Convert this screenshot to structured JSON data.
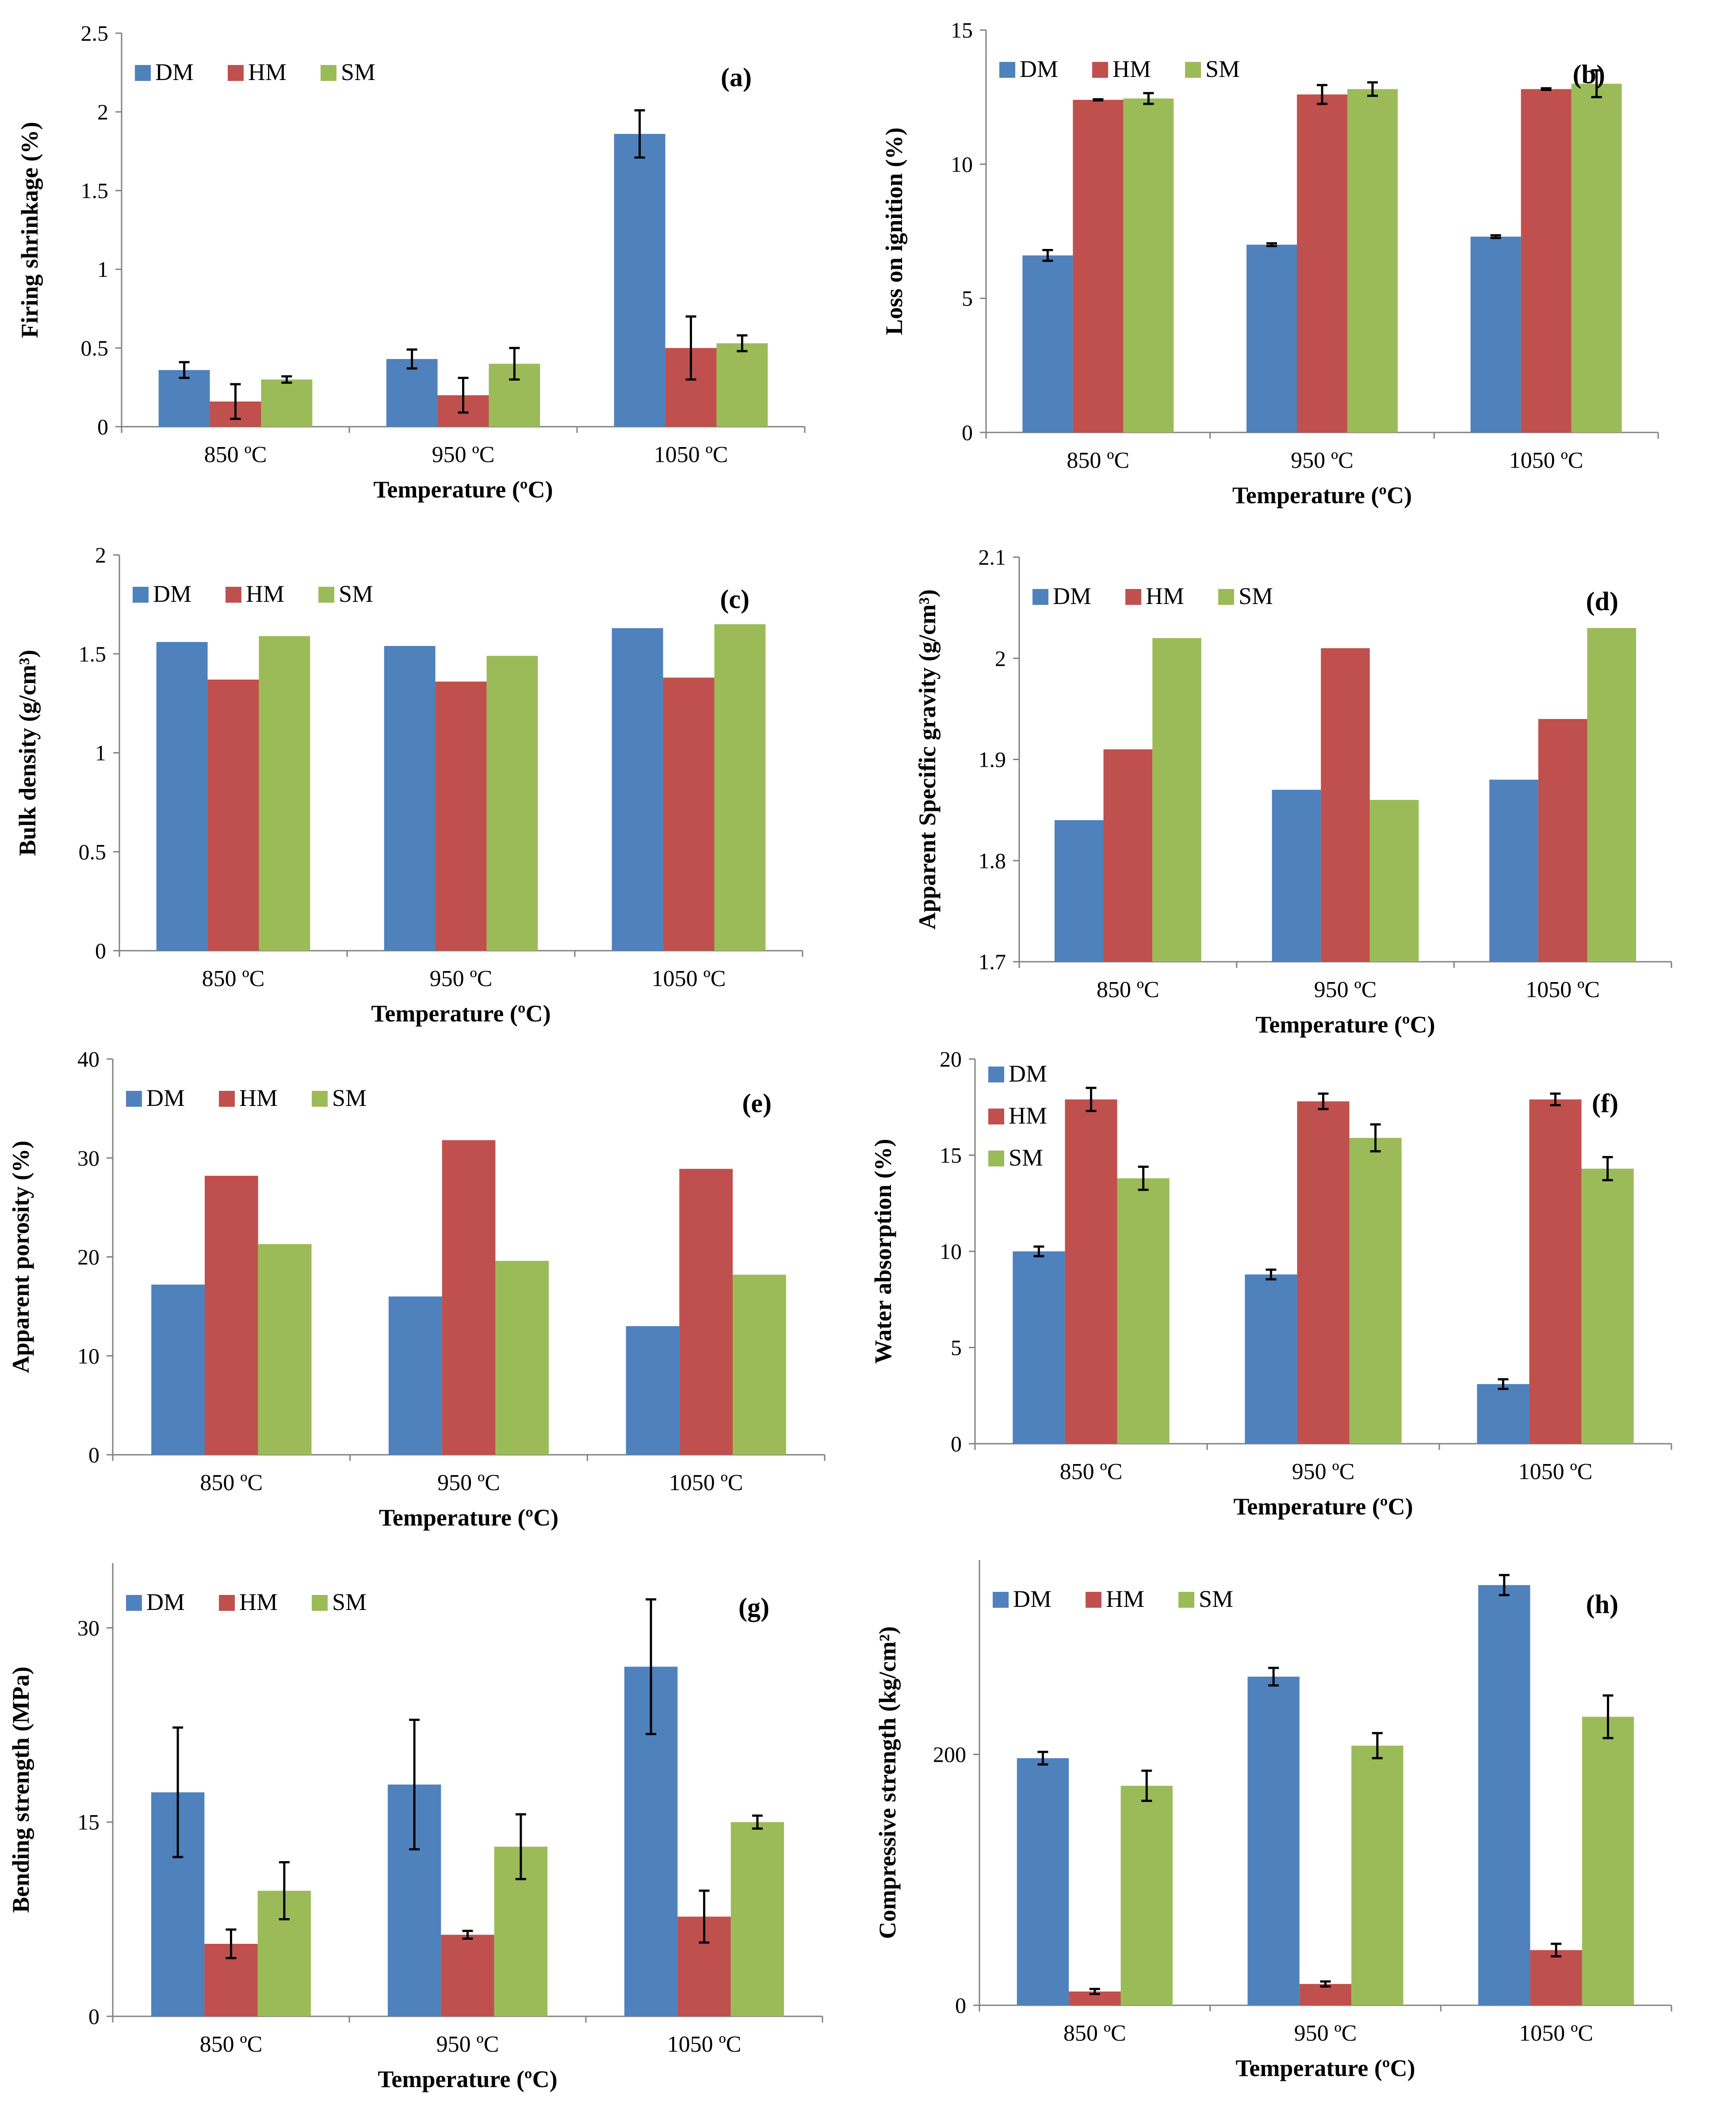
{
  "colors": {
    "DM": "#4f81bd",
    "HM": "#c0504d",
    "SM": "#9bbb59"
  },
  "chart_data": [
    {
      "id": "a",
      "type": "bar",
      "title": "(a)",
      "xlabel": "Temperature (ºC)",
      "ylabel": "Firing shrinkage (%)",
      "categories": [
        "850 ºC",
        "950 ºC",
        "1050 ºC"
      ],
      "ylim": [
        0,
        2.5
      ],
      "yticks": [
        0,
        0.5,
        1,
        1.5,
        2,
        2.5
      ],
      "ytick_labels": [
        "0",
        "0.5",
        "1",
        "1.5",
        "2",
        "2.5"
      ],
      "series": [
        {
          "name": "DM",
          "values": [
            0.36,
            0.43,
            1.86
          ],
          "errors": [
            0.05,
            0.06,
            0.15
          ]
        },
        {
          "name": "HM",
          "values": [
            0.16,
            0.2,
            0.5
          ],
          "errors": [
            0.11,
            0.11,
            0.2
          ]
        },
        {
          "name": "SM",
          "values": [
            0.3,
            0.4,
            0.53
          ],
          "errors": [
            0.02,
            0.1,
            0.05
          ]
        }
      ],
      "legend": "top-left-row"
    },
    {
      "id": "b",
      "type": "bar",
      "title": "(b)",
      "xlabel": "Temperature (ºC)",
      "ylabel": "Loss on ignition (%)",
      "categories": [
        "850 ºC",
        "950 ºC",
        "1050 ºC"
      ],
      "ylim": [
        0,
        15
      ],
      "yticks": [
        0,
        5,
        10,
        15
      ],
      "ytick_labels": [
        "0",
        "5",
        "10",
        "15"
      ],
      "series": [
        {
          "name": "DM",
          "values": [
            6.6,
            7.0,
            7.3
          ],
          "errors": [
            0.2,
            0.05,
            0.05
          ]
        },
        {
          "name": "HM",
          "values": [
            12.4,
            12.6,
            12.8
          ],
          "errors": [
            0.02,
            0.35,
            0.03
          ]
        },
        {
          "name": "SM",
          "values": [
            12.45,
            12.8,
            13.0
          ],
          "errors": [
            0.2,
            0.25,
            0.5
          ]
        }
      ],
      "legend": "top-left-row"
    },
    {
      "id": "c",
      "type": "bar",
      "title": "(c)",
      "xlabel": "Temperature (ºC)",
      "ylabel": "Bulk density (g/cm³)",
      "categories": [
        "850 ºC",
        "950 ºC",
        "1050 ºC"
      ],
      "ylim": [
        0,
        2
      ],
      "yticks": [
        0,
        0.5,
        1,
        1.5,
        2
      ],
      "ytick_labels": [
        "0",
        "0.5",
        "1",
        "1.5",
        "2"
      ],
      "series": [
        {
          "name": "DM",
          "values": [
            1.56,
            1.54,
            1.63
          ]
        },
        {
          "name": "HM",
          "values": [
            1.37,
            1.36,
            1.38
          ]
        },
        {
          "name": "SM",
          "values": [
            1.59,
            1.49,
            1.65
          ]
        }
      ],
      "legend": "top-left-row"
    },
    {
      "id": "d",
      "type": "bar",
      "title": "(d)",
      "xlabel": "Temperature (ºC)",
      "ylabel": "Apparent Specific gravity (g/cm³)",
      "categories": [
        "850 ºC",
        "950 ºC",
        "1050 ºC"
      ],
      "ylim": [
        1.7,
        2.1
      ],
      "yticks": [
        1.7,
        1.8,
        1.9,
        2,
        2.1
      ],
      "ytick_labels": [
        "1.7",
        "1.8",
        "1.9",
        "2",
        "2.1"
      ],
      "series": [
        {
          "name": "DM",
          "values": [
            1.84,
            1.87,
            1.88
          ]
        },
        {
          "name": "HM",
          "values": [
            1.91,
            2.01,
            1.94
          ]
        },
        {
          "name": "SM",
          "values": [
            2.02,
            1.86,
            2.03
          ]
        }
      ],
      "legend": "top-left-row"
    },
    {
      "id": "e",
      "type": "bar",
      "title": "(e)",
      "xlabel": "Temperature (ºC)",
      "ylabel": "Apparent porosity (%)",
      "categories": [
        "850 ºC",
        "950 ºC",
        "1050 ºC"
      ],
      "ylim": [
        0,
        40
      ],
      "yticks": [
        0,
        10,
        20,
        30,
        40
      ],
      "ytick_labels": [
        "0",
        "10",
        "20",
        "30",
        "40"
      ],
      "series": [
        {
          "name": "DM",
          "values": [
            17.2,
            16.0,
            13.0
          ]
        },
        {
          "name": "HM",
          "values": [
            28.2,
            31.8,
            28.9
          ]
        },
        {
          "name": "SM",
          "values": [
            21.3,
            19.6,
            18.2
          ]
        }
      ],
      "legend": "top-left-row"
    },
    {
      "id": "f",
      "type": "bar",
      "title": "(f)",
      "xlabel": "Temperature (ºC)",
      "ylabel": "Water absorption (%)",
      "categories": [
        "850 ºC",
        "950 ºC",
        "1050 ºC"
      ],
      "ylim": [
        0,
        20
      ],
      "yticks": [
        0,
        5,
        10,
        15,
        20
      ],
      "ytick_labels": [
        "0",
        "5",
        "10",
        "15",
        "20"
      ],
      "series": [
        {
          "name": "DM",
          "values": [
            10.0,
            8.8,
            3.1
          ],
          "errors": [
            0.25,
            0.25,
            0.25
          ]
        },
        {
          "name": "HM",
          "values": [
            17.9,
            17.8,
            17.9
          ],
          "errors": [
            0.6,
            0.4,
            0.3
          ]
        },
        {
          "name": "SM",
          "values": [
            13.8,
            15.9,
            14.3
          ],
          "errors": [
            0.6,
            0.7,
            0.6
          ]
        }
      ],
      "legend": "top-left-column"
    },
    {
      "id": "g",
      "type": "bar",
      "title": "(g)",
      "xlabel": "Temperature (ºC)",
      "ylabel": "Bending strength (MPa)",
      "categories": [
        "850 ºC",
        "950 ºC",
        "1050 ºC"
      ],
      "ylim": [
        0,
        35
      ],
      "yticks": [
        0,
        15,
        30
      ],
      "ytick_labels": [
        "0",
        "15",
        "30"
      ],
      "series": [
        {
          "name": "DM",
          "values": [
            17.3,
            17.9,
            27.0
          ],
          "errors": [
            5.0,
            5.0,
            5.2
          ]
        },
        {
          "name": "HM",
          "values": [
            5.6,
            6.3,
            7.7
          ],
          "errors": [
            1.1,
            0.3,
            2.0
          ]
        },
        {
          "name": "SM",
          "values": [
            9.7,
            13.1,
            15.0
          ],
          "errors": [
            2.2,
            2.5,
            0.5
          ]
        }
      ],
      "legend": "top-left-row"
    },
    {
      "id": "h",
      "type": "bar",
      "title": "(h)",
      "xlabel": "Temperature (ºC)",
      "ylabel": "Compressive strength (kg/cm²)",
      "categories": [
        "850 ºC",
        "950 ºC",
        "1050 ºC"
      ],
      "ylim": [
        0,
        355
      ],
      "yticks": [
        0,
        200
      ],
      "ytick_labels": [
        "0",
        "200"
      ],
      "series": [
        {
          "name": "DM",
          "values": [
            197,
            262,
            335
          ],
          "errors": [
            5,
            7,
            8
          ]
        },
        {
          "name": "HM",
          "values": [
            11,
            17,
            44
          ],
          "errors": [
            2,
            2,
            5
          ]
        },
        {
          "name": "SM",
          "values": [
            175,
            207,
            230
          ],
          "errors": [
            12,
            10,
            17
          ]
        }
      ],
      "legend": "top-left-row"
    }
  ]
}
